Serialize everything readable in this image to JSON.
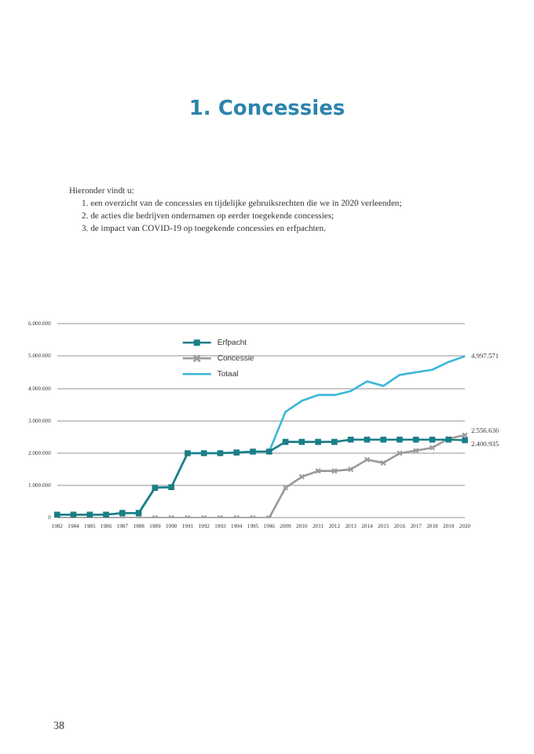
{
  "chart_data": {
    "type": "line",
    "title": "1. Concessies",
    "annotations": [
      "Hieronder vindt u:",
      "1. een overzicht van de concessies en tijdelijke gebruiksrechten die we in 2020 verleenden;",
      "2. de acties die bedrijven ondernamen op eerder toegekende concessies;",
      "3. de impact van COVID-19 op toegekende concessies en erfpachten.",
      "38"
    ],
    "categories": [
      "1982",
      "1984",
      "1985",
      "1986",
      "1987",
      "1988",
      "1989",
      "1990",
      "1991",
      "1992",
      "1993",
      "1994",
      "1995",
      "1996",
      "2009",
      "2010",
      "2011",
      "2012",
      "2013",
      "2014",
      "2015",
      "2016",
      "2017",
      "2018",
      "2019",
      "2020"
    ],
    "series": [
      {
        "name": "Erfpacht",
        "color": "#1b7f86",
        "marker": "square",
        "values": [
          100000,
          100000,
          100000,
          100000,
          150000,
          150000,
          930000,
          950000,
          2000000,
          2000000,
          2000000,
          2020000,
          2050000,
          2050000,
          2350000,
          2350000,
          2350000,
          2350000,
          2420000,
          2420000,
          2420000,
          2420000,
          2420000,
          2420000,
          2420000,
          2400935
        ],
        "value_labels": [
          null,
          null,
          null,
          null,
          null,
          null,
          null,
          null,
          null,
          null,
          null,
          null,
          null,
          null,
          null,
          null,
          null,
          null,
          null,
          null,
          null,
          null,
          null,
          null,
          null,
          "2.400.935"
        ]
      },
      {
        "name": "Concessie",
        "color": "#9a9a9a",
        "marker": "cross",
        "values": [
          0,
          0,
          0,
          0,
          0,
          0,
          0,
          0,
          0,
          0,
          0,
          0,
          0,
          0,
          930000,
          1270000,
          1450000,
          1450000,
          1500000,
          1800000,
          1700000,
          2000000,
          2080000,
          2170000,
          2450000,
          2556636
        ],
        "value_labels": [
          null,
          null,
          null,
          null,
          null,
          null,
          null,
          null,
          null,
          null,
          null,
          null,
          null,
          null,
          null,
          null,
          null,
          null,
          null,
          null,
          null,
          null,
          null,
          null,
          null,
          "2.556.636"
        ]
      },
      {
        "name": "Totaal",
        "color": "#3bb8d8",
        "marker": "none",
        "values": [
          100000,
          100000,
          100000,
          100000,
          150000,
          150000,
          930000,
          950000,
          2000000,
          2000000,
          2000000,
          2020000,
          2050000,
          2050000,
          3280000,
          3620000,
          3800000,
          3800000,
          3920000,
          4220000,
          4080000,
          4420000,
          4500000,
          4580000,
          4820000,
          4997571
        ],
        "value_labels": [
          null,
          null,
          null,
          null,
          null,
          null,
          null,
          null,
          null,
          null,
          null,
          null,
          null,
          null,
          null,
          null,
          null,
          null,
          null,
          null,
          null,
          null,
          null,
          null,
          null,
          "4.997.571"
        ]
      }
    ],
    "ylim": [
      0,
      6000000
    ],
    "yticks": [
      {
        "value": 0,
        "label": "0"
      },
      {
        "value": 1000000,
        "label": "1.000.000"
      },
      {
        "value": 2000000,
        "label": "2.000.000"
      },
      {
        "value": 3000000,
        "label": "3.000.000"
      },
      {
        "value": 4000000,
        "label": "4.000.000"
      },
      {
        "value": 5000000,
        "label": "5.000.000"
      },
      {
        "value": 6000000,
        "label": "6.000.000"
      }
    ],
    "grid": "y",
    "legend": "top left"
  }
}
